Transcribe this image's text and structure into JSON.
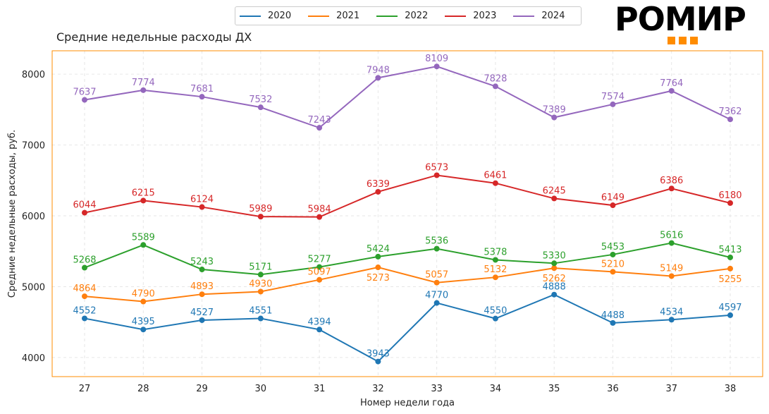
{
  "chart_data": {
    "type": "line",
    "title": "Средние недельные расходы ДХ",
    "xlabel": "Номер недели года",
    "ylabel": "Средние недельные расходы, руб.",
    "x": [
      27,
      28,
      29,
      30,
      31,
      32,
      33,
      34,
      35,
      36,
      37,
      38
    ],
    "ylim": [
      3730,
      8330
    ],
    "yticks": [
      4000,
      5000,
      6000,
      7000,
      8000
    ],
    "grid": true,
    "legend_position": "top-center",
    "series": [
      {
        "name": "2020",
        "color": "#1f77b4",
        "values": [
          4552,
          4395,
          4527,
          4551,
          4394,
          3943,
          4770,
          4550,
          4888,
          4488,
          4534,
          4597
        ]
      },
      {
        "name": "2021",
        "color": "#ff7f0e",
        "values": [
          4864,
          4790,
          4893,
          4930,
          5097,
          5273,
          5057,
          5132,
          5262,
          5210,
          5149,
          5255
        ]
      },
      {
        "name": "2022",
        "color": "#2ca02c",
        "values": [
          5268,
          5589,
          5243,
          5171,
          5277,
          5424,
          5536,
          5378,
          5330,
          5453,
          5616,
          5413
        ]
      },
      {
        "name": "2023",
        "color": "#d62728",
        "values": [
          6044,
          6215,
          6124,
          5989,
          5984,
          6339,
          6573,
          6461,
          6245,
          6149,
          6386,
          6180
        ]
      },
      {
        "name": "2024",
        "color": "#9467bd",
        "values": [
          7637,
          7774,
          7681,
          7532,
          7243,
          7948,
          8109,
          7828,
          7389,
          7574,
          7764,
          7362
        ]
      }
    ]
  },
  "logo": {
    "text": "РОМИР",
    "accent": "#ff8c00"
  },
  "frame_color": "#ff8c00"
}
